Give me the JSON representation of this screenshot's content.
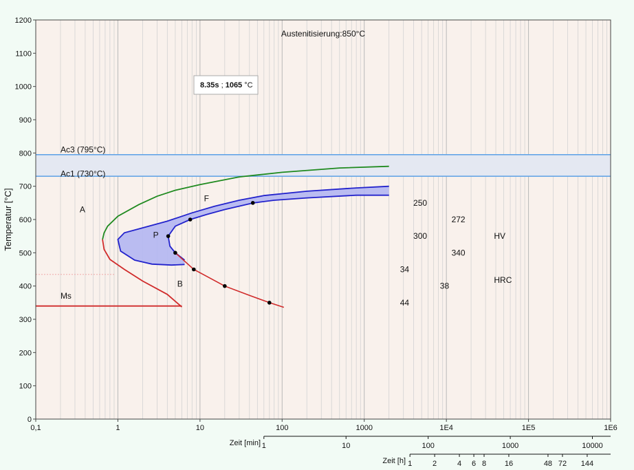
{
  "chart_data": {
    "type": "line",
    "title": "Austenitisierung:850°C",
    "ylabel": "Temperatur [°C]",
    "ylim": [
      0,
      1200
    ],
    "yticks": [
      "0",
      "100",
      "200",
      "300",
      "400",
      "500",
      "600",
      "700",
      "800",
      "900",
      "1000",
      "1100",
      "1200"
    ],
    "x_scale": "log",
    "x_unit": "s",
    "xlim": [
      0.1,
      1000000
    ],
    "xticks_s": [
      0.1,
      1,
      10,
      100,
      1000,
      10000,
      100000,
      1000000
    ],
    "xticks": [
      "0,1",
      "1",
      "10",
      "100",
      "1000",
      "1E4",
      "1E5",
      "1E6"
    ],
    "axis_min": {
      "label": "Zeit [min]",
      "ticks_min": [
        1,
        10,
        100,
        1000,
        10000
      ],
      "ticks": [
        "1",
        "10",
        "100",
        "1000",
        "10000"
      ]
    },
    "axis_h": {
      "label": "Zeit [h]",
      "ticks_h": [
        1,
        2,
        4,
        6,
        8,
        16,
        48,
        72,
        144
      ],
      "ticks": [
        "1",
        "2",
        "4",
        "6",
        "8",
        "16",
        "48",
        "72",
        "144"
      ]
    },
    "tooltip": {
      "time": "8.35s",
      "sep": " ; ",
      "temp": "1065",
      "unit": " °C"
    },
    "bands": {
      "ac3": 795,
      "ac1": 730
    },
    "labels": {
      "ac3": "Ac3 (795°C)",
      "ac1": "Ac1 (730°C)",
      "A": "A",
      "F": "F",
      "P": "P",
      "B": "B",
      "Ms": "Ms",
      "HV": "HV",
      "HRC": "HRC"
    },
    "hardness_hv": [
      {
        "value": "250",
        "t": 4800,
        "T": 650
      },
      {
        "value": "272",
        "t": 14000,
        "T": 600
      },
      {
        "value": "300",
        "t": 4800,
        "T": 550
      },
      {
        "value": "340",
        "t": 14000,
        "T": 500
      }
    ],
    "hardness_hrc": [
      {
        "value": "34",
        "t": 3100,
        "T": 450
      },
      {
        "value": "38",
        "t": 9500,
        "T": 400
      },
      {
        "value": "44",
        "t": 3100,
        "T": 350
      }
    ],
    "ferrite_curve": [
      [
        2000,
        760
      ],
      [
        500,
        755
      ],
      [
        100,
        742
      ],
      [
        30,
        728
      ],
      [
        10,
        705
      ],
      [
        5,
        688
      ],
      [
        3,
        670
      ],
      [
        1.8,
        645
      ],
      [
        1,
        610
      ],
      [
        0.75,
        580
      ],
      [
        0.68,
        560
      ],
      [
        0.65,
        540
      ]
    ],
    "bainite_curve": [
      [
        0.65,
        540
      ],
      [
        0.68,
        510
      ],
      [
        0.8,
        480
      ],
      [
        1.2,
        450
      ],
      [
        2,
        415
      ],
      [
        4,
        375
      ],
      [
        6,
        337
      ]
    ],
    "ms_line": [
      [
        0.1,
        340
      ],
      [
        6,
        340
      ]
    ],
    "ms_faint_line": [
      [
        0.1,
        435
      ],
      [
        0.9,
        435
      ]
    ],
    "pearlite_start": [
      [
        2000,
        700
      ],
      [
        800,
        695
      ],
      [
        200,
        685
      ],
      [
        60,
        672
      ],
      [
        30,
        658
      ],
      [
        15,
        640
      ],
      [
        8,
        620
      ],
      [
        4,
        595
      ],
      [
        2,
        575
      ],
      [
        1.2,
        560
      ],
      [
        1,
        540
      ],
      [
        1.08,
        505
      ],
      [
        1.6,
        478
      ],
      [
        2.6,
        466
      ],
      [
        4.5,
        463
      ],
      [
        6.5,
        465
      ]
    ],
    "pearlite_end": [
      [
        2000,
        673
      ],
      [
        800,
        673
      ],
      [
        200,
        665
      ],
      [
        80,
        658
      ],
      [
        45,
        650
      ],
      [
        20,
        630
      ],
      [
        12,
        615
      ],
      [
        7.6,
        600
      ],
      [
        5,
        580
      ],
      [
        4.1,
        550
      ],
      [
        4.3,
        520
      ],
      [
        5,
        500
      ],
      [
        6.5,
        478
      ]
    ],
    "bainite_line": [
      [
        5,
        500
      ],
      [
        8.4,
        450
      ],
      [
        20,
        400
      ],
      [
        40,
        372
      ],
      [
        70,
        350
      ],
      [
        105,
        336
      ]
    ],
    "points": [
      [
        44,
        650
      ],
      [
        7.6,
        600
      ],
      [
        4.1,
        550
      ],
      [
        5,
        500
      ],
      [
        8.4,
        450
      ],
      [
        20,
        400
      ],
      [
        70,
        350
      ]
    ],
    "colors": {
      "ferrite": "#1f8a1f",
      "bainite": "#d02a2a",
      "pearlite": "#2222cc",
      "pearlite_fill": "#b3b6f2",
      "band_line": "#5aa0e6",
      "band_fill": "#e4e8f2",
      "plot_bg": "#f9f1ec",
      "grid": "#d2d2d2"
    }
  }
}
